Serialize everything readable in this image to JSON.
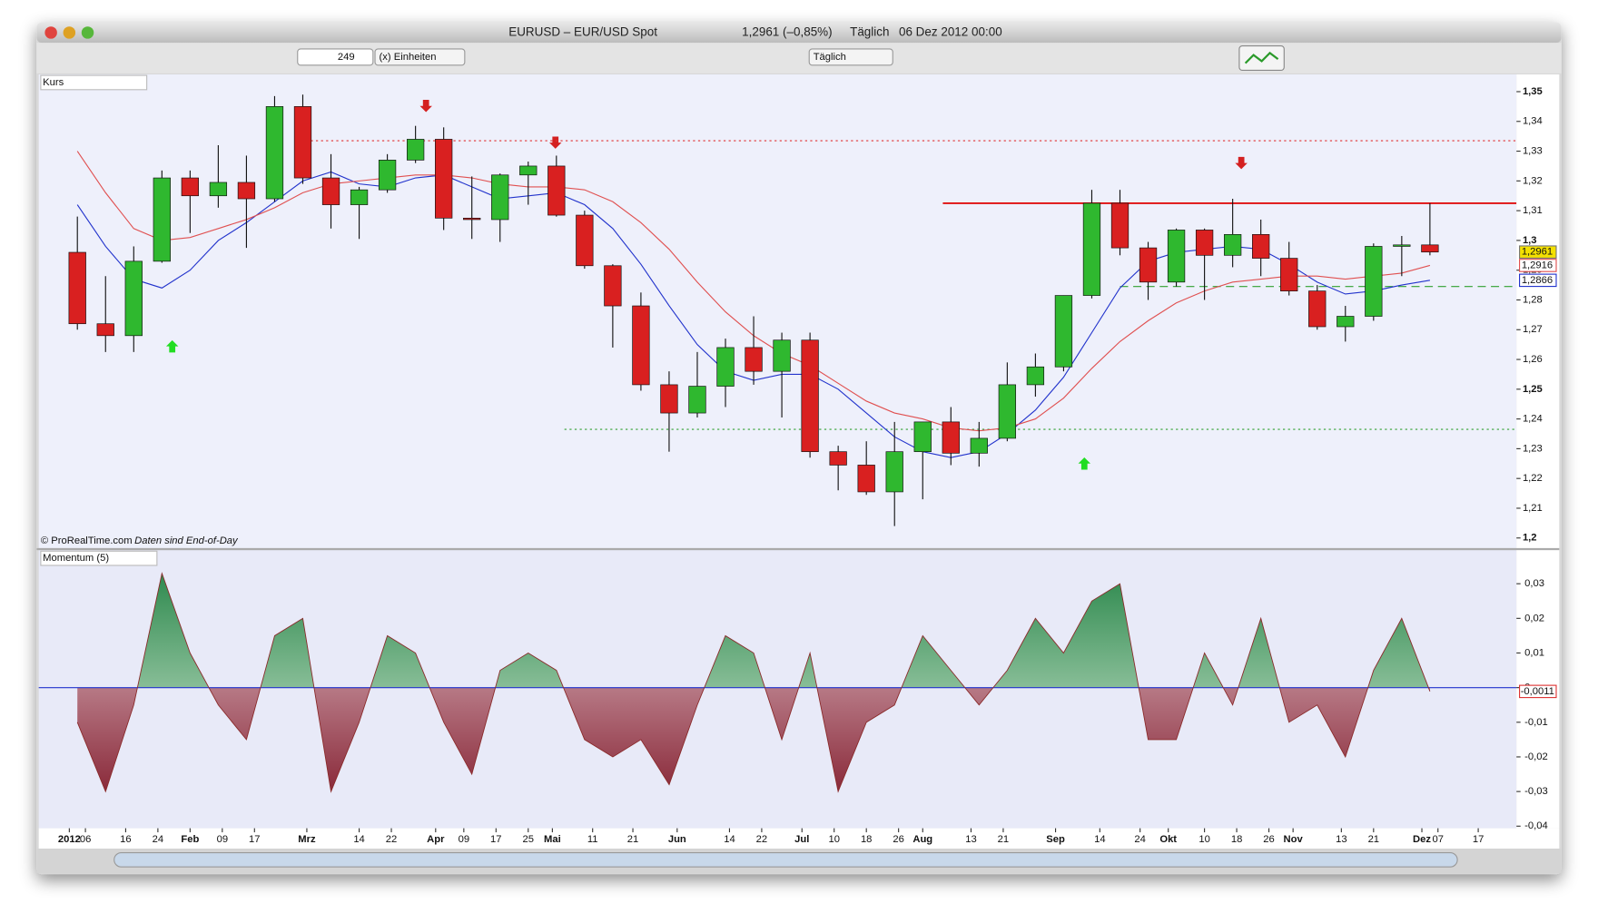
{
  "window": {
    "title": "EURUSD – EUR/USD Spot",
    "quote": "1,2961 (–0,85%)",
    "period": "Täglich",
    "date": "06 Dez 2012 00:00"
  },
  "toolbar": {
    "bars": 249,
    "units": "(x) Einheiten",
    "period": "Täglich"
  },
  "footer": {
    "copyright": "© ProRealTime.com",
    "note": "Daten sind End-of-Day"
  },
  "chart_data": [
    {
      "type": "candlestick",
      "title": "Kurs",
      "x": [
        4,
        11,
        18,
        25,
        32,
        39,
        46,
        53,
        60,
        67,
        74,
        81,
        88,
        95,
        102,
        109,
        116,
        123,
        130,
        137,
        144,
        151,
        158,
        165,
        172,
        179,
        186,
        193,
        200,
        207,
        214,
        221,
        228,
        235,
        242,
        249,
        256,
        263,
        270,
        277,
        284,
        291,
        298,
        305,
        312,
        319,
        326,
        333,
        340
      ],
      "open": [
        1.296,
        1.272,
        1.268,
        1.293,
        1.321,
        1.315,
        1.3195,
        1.314,
        1.345,
        1.321,
        1.312,
        1.317,
        1.327,
        1.334,
        1.3075,
        1.307,
        1.322,
        1.325,
        1.3085,
        1.2915,
        1.278,
        1.2515,
        1.242,
        1.251,
        1.264,
        1.256,
        1.2665,
        1.229,
        1.2245,
        1.2155,
        1.229,
        1.239,
        1.2285,
        1.2335,
        1.2515,
        1.2575,
        1.2815,
        1.3125,
        1.2975,
        1.286,
        1.3035,
        1.295,
        1.302,
        1.294,
        1.283,
        1.271,
        1.2745,
        1.298,
        1.2985
      ],
      "high": [
        1.308,
        1.288,
        1.298,
        1.3235,
        1.3235,
        1.332,
        1.3285,
        1.3485,
        1.349,
        1.329,
        1.318,
        1.329,
        1.3385,
        1.338,
        1.3215,
        1.3225,
        1.3265,
        1.3285,
        1.31,
        1.292,
        1.2825,
        1.256,
        1.2625,
        1.267,
        1.2745,
        1.269,
        1.269,
        1.231,
        1.2325,
        1.239,
        1.239,
        1.244,
        1.239,
        1.259,
        1.262,
        1.2815,
        1.317,
        1.317,
        1.2995,
        1.304,
        1.304,
        1.314,
        1.307,
        1.2995,
        1.285,
        1.278,
        1.299,
        1.3015,
        1.3125
      ],
      "low": [
        1.27,
        1.2625,
        1.2625,
        1.2925,
        1.3025,
        1.311,
        1.2975,
        1.313,
        1.319,
        1.304,
        1.3005,
        1.316,
        1.326,
        1.3035,
        1.3005,
        1.2995,
        1.312,
        1.308,
        1.2905,
        1.264,
        1.2495,
        1.229,
        1.2405,
        1.244,
        1.2515,
        1.2405,
        1.227,
        1.216,
        1.2145,
        1.204,
        1.213,
        1.2245,
        1.224,
        1.2325,
        1.2475,
        1.256,
        1.2805,
        1.295,
        1.28,
        1.2845,
        1.28,
        1.291,
        1.288,
        1.2815,
        1.27,
        1.266,
        1.273,
        1.288,
        1.295
      ],
      "close": [
        1.272,
        1.268,
        1.293,
        1.321,
        1.315,
        1.3195,
        1.314,
        1.345,
        1.321,
        1.312,
        1.317,
        1.327,
        1.334,
        1.3075,
        1.307,
        1.322,
        1.325,
        1.3085,
        1.2915,
        1.278,
        1.2515,
        1.242,
        1.251,
        1.264,
        1.256,
        1.2665,
        1.229,
        1.2245,
        1.2155,
        1.229,
        1.239,
        1.2285,
        1.2335,
        1.2515,
        1.2575,
        1.2815,
        1.3125,
        1.2975,
        1.286,
        1.3035,
        1.295,
        1.302,
        1.294,
        1.283,
        1.271,
        1.2745,
        1.298,
        1.2985,
        1.2961
      ],
      "last_label": "1,2961",
      "up_color": "#2fb82f",
      "down_color": "#d92020",
      "lines": [
        {
          "color": "#2233cc",
          "last_label": "1,2866",
          "values": [
            1.312,
            1.298,
            1.287,
            1.284,
            1.29,
            1.3,
            1.306,
            1.313,
            1.32,
            1.323,
            1.319,
            1.318,
            1.321,
            1.322,
            1.318,
            1.314,
            1.315,
            1.316,
            1.312,
            1.304,
            1.292,
            1.278,
            1.265,
            1.256,
            1.253,
            1.255,
            1.255,
            1.25,
            1.242,
            1.234,
            1.229,
            1.227,
            1.229,
            1.235,
            1.243,
            1.254,
            1.269,
            1.284,
            1.293,
            1.296,
            1.297,
            1.298,
            1.297,
            1.292,
            1.286,
            1.282,
            1.283,
            1.285,
            1.2866
          ]
        },
        {
          "color": "#e05050",
          "last_label": "1,2916",
          "values": [
            1.33,
            1.316,
            1.304,
            1.3,
            1.301,
            1.304,
            1.307,
            1.311,
            1.316,
            1.319,
            1.32,
            1.321,
            1.322,
            1.322,
            1.321,
            1.319,
            1.318,
            1.318,
            1.317,
            1.313,
            1.306,
            1.297,
            1.286,
            1.276,
            1.268,
            1.262,
            1.258,
            1.252,
            1.246,
            1.242,
            1.24,
            1.237,
            1.236,
            1.237,
            1.24,
            1.247,
            1.257,
            1.266,
            1.273,
            1.279,
            1.283,
            1.286,
            1.287,
            1.288,
            1.288,
            1.287,
            1.288,
            1.289,
            1.2916
          ]
        }
      ],
      "levels": [
        {
          "value": 1.3335,
          "x_from": 62,
          "color": "#e03030",
          "dash": "2,3"
        },
        {
          "value": 1.3125,
          "x_from": 219,
          "color": "#e01010",
          "dash": "none"
        },
        {
          "value": 1.2845,
          "x_from": 263,
          "color": "#30a030",
          "dash": "8,5"
        },
        {
          "value": 1.2365,
          "x_from": 125,
          "color": "#30a030",
          "dash": "2,3"
        }
      ],
      "xlim": [
        -5.6,
        361.5
      ],
      "ylim": [
        1.1966,
        1.3558
      ],
      "yticks": [
        {
          "value": 1.2,
          "label": "1,2"
        },
        {
          "value": 1.21,
          "label": "1,21"
        },
        {
          "value": 1.22,
          "label": "1,22"
        },
        {
          "value": 1.23,
          "label": "1,23"
        },
        {
          "value": 1.24,
          "label": "1,24"
        },
        {
          "value": 1.25,
          "label": "1,25"
        },
        {
          "value": 1.26,
          "label": "1,26"
        },
        {
          "value": 1.27,
          "label": "1,27"
        },
        {
          "value": 1.28,
          "label": "1,28"
        },
        {
          "value": 1.29,
          "label": "1,29"
        },
        {
          "value": 1.3,
          "label": "1,3"
        },
        {
          "value": 1.31,
          "label": "1,31"
        },
        {
          "value": 1.32,
          "label": "1,32"
        },
        {
          "value": 1.33,
          "label": "1,33"
        },
        {
          "value": 1.34,
          "label": "1,34"
        },
        {
          "value": 1.35,
          "label": "1,35"
        }
      ]
    },
    {
      "type": "area",
      "title": "Momentum (5)",
      "x": [
        4,
        11,
        18,
        25,
        32,
        39,
        46,
        53,
        60,
        67,
        74,
        81,
        88,
        95,
        102,
        109,
        116,
        123,
        130,
        137,
        144,
        151,
        158,
        165,
        172,
        179,
        186,
        193,
        200,
        207,
        214,
        221,
        228,
        235,
        242,
        249,
        256,
        263,
        270,
        277,
        284,
        291,
        298,
        305,
        312,
        319,
        326,
        333,
        340
      ],
      "values": [
        -0.01,
        -0.03,
        -0.005,
        0.033,
        0.01,
        -0.005,
        -0.015,
        0.015,
        0.02,
        -0.03,
        -0.01,
        0.015,
        0.01,
        -0.01,
        -0.025,
        0.005,
        0.01,
        0.005,
        -0.015,
        -0.02,
        -0.015,
        -0.028,
        -0.005,
        0.015,
        0.01,
        -0.015,
        0.01,
        -0.03,
        -0.01,
        -0.005,
        0.015,
        0.005,
        -0.005,
        0.005,
        0.02,
        0.01,
        0.025,
        0.03,
        -0.015,
        -0.015,
        0.01,
        -0.005,
        0.02,
        -0.01,
        -0.005,
        -0.02,
        0.005,
        0.02,
        -0.0011
      ],
      "last_label": "-0,0011",
      "line_color": "#8a2a2a",
      "zero_color": "#2233cc",
      "xlim": [
        -5.6,
        361.5
      ],
      "ylim": [
        -0.0406,
        0.0397
      ],
      "yticks": [
        {
          "value": -0.04,
          "label": "-0,04"
        },
        {
          "value": -0.03,
          "label": "-0,03"
        },
        {
          "value": -0.02,
          "label": "-0,02"
        },
        {
          "value": -0.01,
          "label": "-0,01"
        },
        0,
        {
          "value": 0.01,
          "label": "0,01"
        },
        {
          "value": 0.02,
          "label": "0,02"
        },
        {
          "value": 0.03,
          "label": "0,03"
        }
      ],
      "xticks": [
        {
          "value": 2,
          "label": "2012"
        },
        {
          "value": 6,
          "label": "06"
        },
        16,
        24,
        {
          "value": 32,
          "label": "Feb"
        },
        {
          "value": 40,
          "label": "09"
        },
        {
          "value": 48,
          "label": "17"
        },
        {
          "value": 61,
          "label": "Mrz"
        },
        {
          "value": 74,
          "label": "14"
        },
        {
          "value": 82,
          "label": "22"
        },
        {
          "value": 93,
          "label": "Apr"
        },
        {
          "value": 100,
          "label": "09"
        },
        {
          "value": 108,
          "label": "17"
        },
        {
          "value": 116,
          "label": "25"
        },
        {
          "value": 122,
          "label": "Mai"
        },
        {
          "value": 132,
          "label": "11"
        },
        {
          "value": 142,
          "label": "21"
        },
        {
          "value": 153,
          "label": "Jun"
        },
        {
          "value": 166,
          "label": "14"
        },
        {
          "value": 174,
          "label": "22"
        },
        {
          "value": 184,
          "label": "Jul"
        },
        {
          "value": 192,
          "label": "10"
        },
        {
          "value": 200,
          "label": "18"
        },
        {
          "value": 208,
          "label": "26"
        },
        {
          "value": 214,
          "label": "Aug"
        },
        {
          "value": 226,
          "label": "13"
        },
        {
          "value": 234,
          "label": "21"
        },
        {
          "value": 247,
          "label": "Sep"
        },
        {
          "value": 258,
          "label": "14"
        },
        {
          "value": 268,
          "label": "24"
        },
        {
          "value": 275,
          "label": "Okt"
        },
        {
          "value": 284,
          "label": "10"
        },
        {
          "value": 292,
          "label": "18"
        },
        {
          "value": 300,
          "label": "26"
        },
        {
          "value": 306,
          "label": "Nov"
        },
        {
          "value": 318,
          "label": "13"
        },
        {
          "value": 326,
          "label": "21"
        },
        {
          "value": 338,
          "label": "Dez"
        },
        {
          "value": 342,
          "label": "07"
        },
        {
          "value": 352,
          "label": "17"
        }
      ]
    }
  ]
}
